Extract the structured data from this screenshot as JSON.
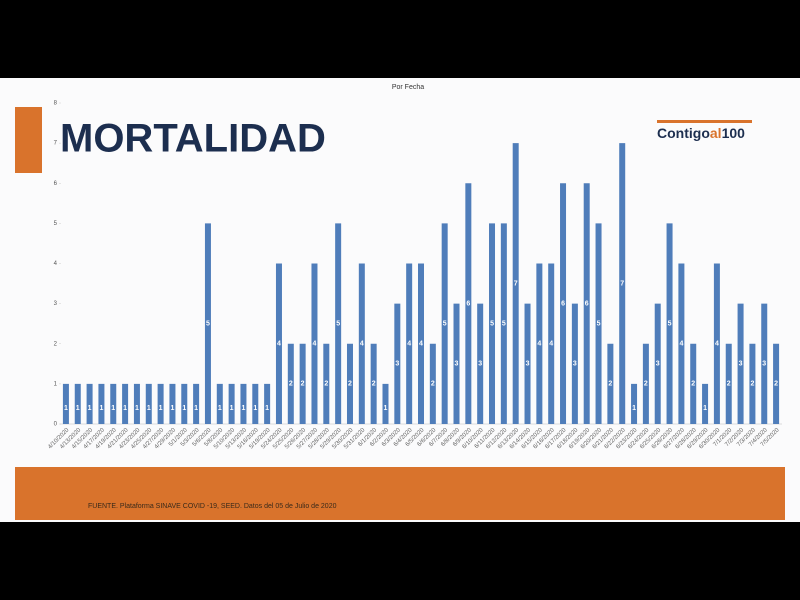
{
  "slide": {
    "title": "MORTALIDAD",
    "logo": [
      "Contigo",
      "al",
      "100"
    ],
    "footer": "FUENTE. Plataforma SINAVE COVID -19, SEED. Datos del 05 de Julio de 2020"
  },
  "chart_data": {
    "type": "bar",
    "title": "Por Fecha",
    "color": "#4f7dba",
    "categories": [
      "4/10/2020",
      "4/13/2020",
      "4/15/2020",
      "4/17/2020",
      "4/19/2020",
      "4/21/2020",
      "4/23/2020",
      "4/25/2020",
      "4/27/2020",
      "4/29/2020",
      "5/1/2020",
      "5/3/2020",
      "5/6/2020",
      "5/8/2020",
      "5/10/2020",
      "5/13/2020",
      "5/16/2020",
      "5/19/2020",
      "5/24/2020",
      "5/25/2020",
      "5/26/2020",
      "5/27/2020",
      "5/28/2020",
      "5/29/2020",
      "5/30/2020",
      "5/31/2020",
      "6/1/2020",
      "6/2/2020",
      "6/3/2020",
      "6/4/2020",
      "6/5/2020",
      "6/6/2020",
      "6/7/2020",
      "6/8/2020",
      "6/9/2020",
      "6/10/2020",
      "6/11/2020",
      "6/12/2020",
      "6/13/2020",
      "6/14/2020",
      "6/15/2020",
      "6/16/2020",
      "6/17/2020",
      "6/18/2020",
      "6/19/2020",
      "6/20/2020",
      "6/21/2020",
      "6/22/2020",
      "6/23/2020",
      "6/24/2020",
      "6/25/2020",
      "6/26/2020",
      "6/27/2020",
      "6/28/2020",
      "6/29/2020",
      "6/30/2020",
      "7/1/2020",
      "7/2/2020",
      "7/3/2020",
      "7/4/2020",
      "7/5/2020"
    ],
    "values": [
      1,
      1,
      1,
      1,
      1,
      1,
      1,
      1,
      1,
      1,
      1,
      1,
      5,
      1,
      1,
      1,
      1,
      1,
      4,
      2,
      2,
      4,
      2,
      5,
      2,
      4,
      2,
      1,
      3,
      4,
      4,
      2,
      5,
      3,
      6,
      3,
      5,
      5,
      7,
      3,
      4,
      4,
      6,
      3,
      6,
      5,
      2,
      7,
      1,
      2,
      3,
      5,
      4,
      2,
      1,
      4,
      2,
      3,
      2,
      3,
      2
    ],
    "ylim": [
      0,
      8
    ],
    "yticks": [
      0,
      1,
      2,
      3,
      4,
      5,
      6,
      7,
      8
    ]
  }
}
